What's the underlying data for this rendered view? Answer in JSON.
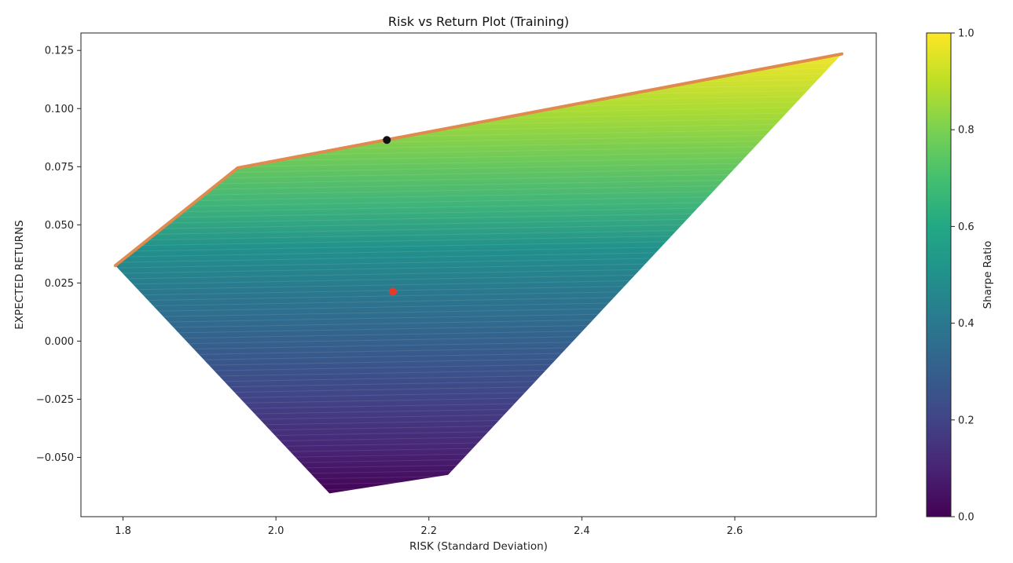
{
  "chart_data": {
    "type": "scatter",
    "title": "Risk vs Return Plot (Training)",
    "xlabel": "RISK (Standard Deviation)",
    "ylabel": "EXPECTED RETURNS",
    "xlim": [
      1.745,
      2.785
    ],
    "ylim": [
      -0.0755,
      0.1325
    ],
    "xticks": [
      1.8,
      2.0,
      2.2,
      2.4,
      2.6
    ],
    "xtick_labels": [
      "1.8",
      "2.0",
      "2.2",
      "2.4",
      "2.6"
    ],
    "yticks": [
      -0.05,
      -0.025,
      0.0,
      0.025,
      0.05,
      0.075,
      0.1,
      0.125
    ],
    "ytick_labels": [
      "−0.050",
      "−0.025",
      "0.000",
      "0.025",
      "0.050",
      "0.075",
      "0.100",
      "0.125"
    ],
    "grid": false,
    "colormap": "viridis",
    "colorbar": {
      "label": "Sharpe Ratio",
      "range": [
        0.0,
        1.0
      ],
      "ticks": [
        0.0,
        0.2,
        0.4,
        0.6,
        0.8,
        1.0
      ],
      "tick_labels": [
        "0.0",
        "0.2",
        "0.4",
        "0.6",
        "0.8",
        "1.0"
      ]
    },
    "portfolio_cloud_outline": [
      [
        1.79,
        0.0325
      ],
      [
        1.95,
        0.0745
      ],
      [
        2.74,
        0.1235
      ],
      [
        2.225,
        -0.0575
      ],
      [
        2.07,
        -0.0655
      ]
    ],
    "efficient_frontier": {
      "color": "#e08a4e",
      "x": [
        1.79,
        1.95,
        2.74
      ],
      "y": [
        0.0325,
        0.0745,
        0.1235
      ]
    },
    "markers": [
      {
        "x": 2.145,
        "y": 0.0865,
        "color": "#111111"
      },
      {
        "x": 2.153,
        "y": 0.0213,
        "color": "#e8392a"
      }
    ]
  }
}
